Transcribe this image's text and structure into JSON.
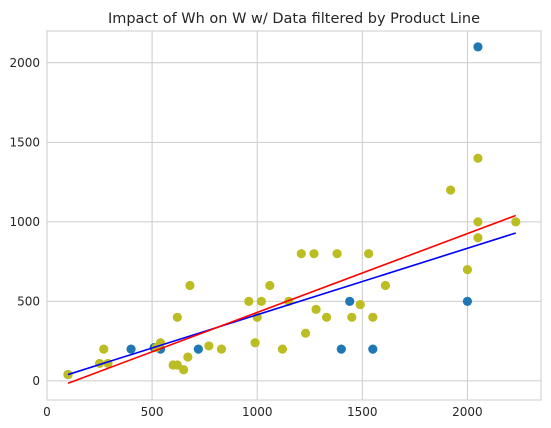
{
  "chart_data": {
    "type": "scatter",
    "title": "Impact of Wh on W w/ Data filtered by Product Line",
    "xlabel": "",
    "ylabel": "",
    "xlim": [
      0,
      2350
    ],
    "ylim": [
      -120,
      2200
    ],
    "x_ticks": [
      0,
      500,
      1000,
      1500,
      2000
    ],
    "y_ticks": [
      0,
      500,
      1000,
      1500,
      2000
    ],
    "x_tick_labels": [
      "0",
      "500",
      "1000",
      "1500",
      "2000"
    ],
    "y_tick_labels": [
      "0",
      "500",
      "1000",
      "1500",
      "2000"
    ],
    "grid": true,
    "series": [
      {
        "color": "#1f77b4",
        "kind": "points",
        "points": [
          [
            100,
            40
          ],
          [
            400,
            200
          ],
          [
            510,
            210
          ],
          [
            540,
            200
          ],
          [
            720,
            200
          ],
          [
            1400,
            200
          ],
          [
            1440,
            500
          ],
          [
            1550,
            200
          ],
          [
            2000,
            500
          ],
          [
            2050,
            2100
          ]
        ]
      },
      {
        "color": "#bcbd22",
        "kind": "points",
        "points": [
          [
            100,
            40
          ],
          [
            250,
            110
          ],
          [
            270,
            200
          ],
          [
            290,
            110
          ],
          [
            520,
            210
          ],
          [
            540,
            240
          ],
          [
            600,
            100
          ],
          [
            620,
            400
          ],
          [
            620,
            100
          ],
          [
            650,
            70
          ],
          [
            670,
            150
          ],
          [
            680,
            600
          ],
          [
            770,
            220
          ],
          [
            830,
            200
          ],
          [
            960,
            500
          ],
          [
            990,
            240
          ],
          [
            1000,
            400
          ],
          [
            1020,
            500
          ],
          [
            1060,
            600
          ],
          [
            1120,
            200
          ],
          [
            1150,
            500
          ],
          [
            1210,
            800
          ],
          [
            1230,
            300
          ],
          [
            1270,
            800
          ],
          [
            1280,
            450
          ],
          [
            1330,
            400
          ],
          [
            1380,
            800
          ],
          [
            1450,
            400
          ],
          [
            1490,
            480
          ],
          [
            1530,
            800
          ],
          [
            1550,
            400
          ],
          [
            1610,
            600
          ],
          [
            1920,
            1200
          ],
          [
            2000,
            700
          ],
          [
            2050,
            1400
          ],
          [
            2050,
            1000
          ],
          [
            2050,
            900
          ],
          [
            2230,
            1000
          ]
        ]
      },
      {
        "color": "#0000ff",
        "kind": "line",
        "points": [
          [
            100,
            40
          ],
          [
            2230,
            930
          ]
        ]
      },
      {
        "color": "#ff0000",
        "kind": "line",
        "points": [
          [
            100,
            -15
          ],
          [
            2230,
            1040
          ]
        ]
      }
    ]
  }
}
